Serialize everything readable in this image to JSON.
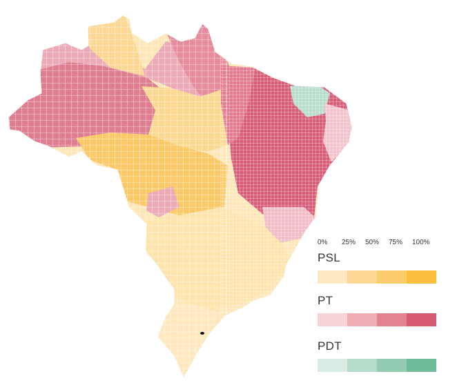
{
  "legend": {
    "scale_labels": [
      "0%",
      "25%",
      "50%",
      "75%",
      "100%"
    ],
    "parties": [
      {
        "name": "PSL",
        "colors": [
          "#fde9c4",
          "#fcd894",
          "#fbcc6c",
          "#f9be3c"
        ]
      },
      {
        "name": "PT",
        "colors": [
          "#f7d3d8",
          "#efadb6",
          "#e4838f",
          "#d65b70"
        ]
      },
      {
        "name": "PDT",
        "colors": [
          "#d9ece4",
          "#b6dccb",
          "#93cbb3",
          "#6fba99"
        ]
      }
    ]
  },
  "map": {
    "region": "Brazil",
    "unit": "municipalities",
    "regions": [
      {
        "area": "north-west",
        "winner": "PT",
        "level": 3
      },
      {
        "area": "north-central",
        "winner": "PT",
        "level": 2
      },
      {
        "area": "central-north",
        "winner": "PSL",
        "level": 2
      },
      {
        "area": "north-east",
        "winner": "PT",
        "level": 4
      },
      {
        "area": "ceara",
        "winner": "PDT",
        "level": 1
      },
      {
        "area": "center-west",
        "winner": "PSL",
        "level": 3
      },
      {
        "area": "south-east",
        "winner": "PSL",
        "level": 2
      },
      {
        "area": "south",
        "winner": "PSL",
        "level": 2
      }
    ]
  }
}
